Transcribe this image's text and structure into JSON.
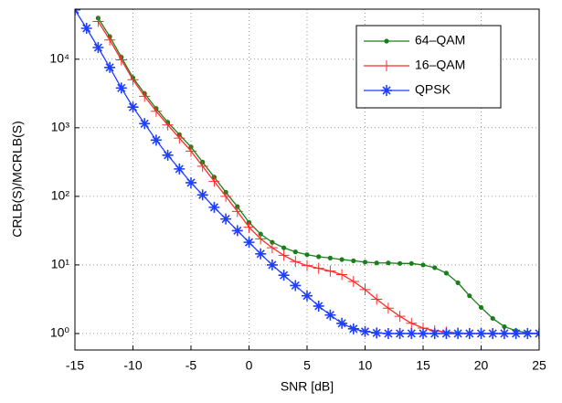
{
  "chart_data": {
    "type": "line",
    "x_label": "SNR [dB]",
    "y_label": "CRLB(S)/MCRLB(S)",
    "x": [
      -15,
      -14,
      -13,
      -12,
      -11,
      -10,
      -9,
      -8,
      -7,
      -6,
      -5,
      -4,
      -3,
      -2,
      -1,
      0,
      1,
      2,
      3,
      4,
      5,
      6,
      7,
      8,
      9,
      10,
      11,
      12,
      13,
      14,
      15,
      16,
      17,
      18,
      19,
      20,
      21,
      22,
      23,
      24,
      25
    ],
    "series": [
      {
        "name": "64–QAM",
        "color": "#1a7f1a",
        "marker": "dot",
        "values": [
          null,
          null,
          39800,
          21400,
          10700,
          5370,
          3160,
          1910,
          1200,
          794,
          525,
          316,
          191,
          115,
          70.8,
          41.7,
          28.2,
          21.4,
          17.8,
          15.5,
          14.1,
          13.2,
          12.6,
          12.0,
          11.5,
          11.0,
          10.7,
          10.7,
          10.5,
          10.5,
          10.0,
          9.12,
          7.59,
          5.5,
          3.55,
          2.4,
          1.66,
          1.26,
          1.1,
          1.02,
          1
        ]
      },
      {
        "name": "16–QAM",
        "color": "#ff2a2a",
        "marker": "plus",
        "values": [
          null,
          null,
          35500,
          19100,
          9770,
          5010,
          2880,
          1740,
          1100,
          708,
          457,
          275,
          166,
          100,
          60.3,
          35.5,
          24.0,
          17.8,
          13.8,
          11.2,
          9.77,
          8.91,
          8.13,
          7.24,
          5.75,
          4.37,
          3.16,
          2.34,
          1.78,
          1.41,
          1.2,
          1.1,
          1.05,
          1.02,
          1,
          1,
          1,
          1,
          1,
          1,
          1
        ]
      },
      {
        "name": "QPSK",
        "color": "#1f3fff",
        "marker": "asterisk",
        "values": [
          52500,
          28200,
          14800,
          7590,
          3800,
          2000,
          1150,
          661,
          398,
          251,
          158,
          105,
          69.2,
          46.8,
          31.6,
          21.4,
          14.5,
          10,
          7.08,
          5.01,
          3.55,
          2.51,
          1.86,
          1.41,
          1.17,
          1.07,
          1.02,
          1,
          1,
          1,
          1,
          1,
          1,
          1,
          1,
          1,
          1,
          1,
          1,
          1,
          1
        ]
      }
    ],
    "xlim": [
      -15,
      25
    ],
    "xticks": [
      -15,
      -10,
      -5,
      0,
      5,
      10,
      15,
      20,
      25
    ],
    "ylim": [
      0.575,
      53700
    ],
    "y_scale": "log",
    "yticks": [
      {
        "value": 1,
        "label": "10⁰"
      },
      {
        "value": 10,
        "label": "10¹"
      },
      {
        "value": 100,
        "label": "10²"
      },
      {
        "value": 1000,
        "label": "10³"
      },
      {
        "value": 10000,
        "label": "10⁴"
      }
    ],
    "grid": true,
    "legend": "upper right"
  }
}
